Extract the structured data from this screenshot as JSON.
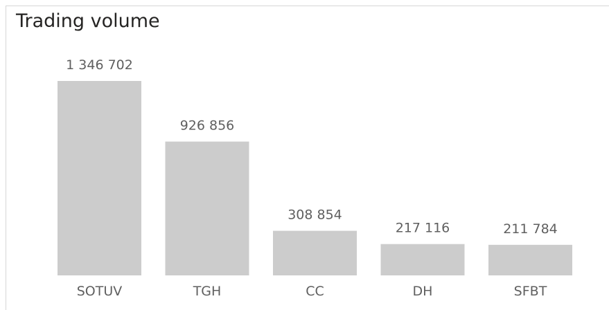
{
  "title": "Trading volume",
  "chart_data": {
    "type": "bar",
    "title": "Trading volume",
    "categories": [
      "SOTUV",
      "TGH",
      "CC",
      "DH",
      "SFBT"
    ],
    "values": [
      1346702,
      926856,
      308854,
      217116,
      211784
    ],
    "value_labels": [
      "1 346 702",
      "926 856",
      "308 854",
      "217 116",
      "211 784"
    ],
    "ylim": [
      0,
      1346702
    ],
    "bar_color": "#cccccc",
    "grid": false,
    "legend": "none"
  }
}
